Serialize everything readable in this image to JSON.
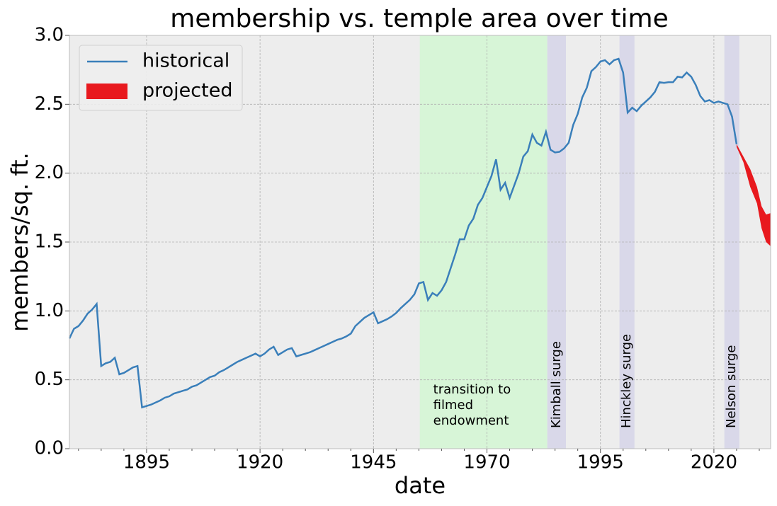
{
  "chart_data": {
    "type": "line",
    "title": "membership vs. temple area over time",
    "xlabel": "date",
    "ylabel": "members/sq. ft.",
    "xlim": [
      1878,
      2032.5
    ],
    "ylim": [
      0,
      3
    ],
    "xticks": [
      1895,
      1920,
      1945,
      1970,
      1995,
      2020
    ],
    "xticks_minor": [
      1880,
      1885,
      1890,
      1900,
      1905,
      1910,
      1915,
      1925,
      1930,
      1935,
      1940,
      1950,
      1955,
      1960,
      1965,
      1975,
      1980,
      1985,
      1990,
      2000,
      2005,
      2010,
      2015,
      2025,
      2030
    ],
    "yticks": [
      {
        "value": 0,
        "label": "0.0"
      },
      0.5,
      {
        "value": 1,
        "label": "1.0"
      },
      1.5,
      {
        "value": 2,
        "label": "2.0"
      },
      2.5,
      {
        "value": 3,
        "label": "3.0"
      }
    ],
    "grid": true,
    "legend": "upper left",
    "spans": [
      {
        "start": 1955.2,
        "end": 1983.3,
        "color": "#d7f5d7",
        "label": [
          "transition to",
          "filmed",
          "endowment"
        ]
      },
      {
        "start": 1983.3,
        "end": 1987.4,
        "color": "#d9d8e9",
        "label": "Kimball surge"
      },
      {
        "start": 1999.2,
        "end": 2002.5,
        "color": "#d9d8e9",
        "label": "Hinckley surge"
      },
      {
        "start": 2022.3,
        "end": 2025.6,
        "color": "#d9d8e9",
        "label": "Nelson surge"
      }
    ],
    "series": [
      {
        "name": "historical",
        "color": "#3a7fba",
        "x": [
          1878,
          1879,
          1880,
          1881,
          1882,
          1883,
          1884,
          1885,
          1886,
          1887,
          1888,
          1889,
          1890,
          1891,
          1892,
          1893,
          1894,
          1895,
          1896,
          1897,
          1898,
          1899,
          1900,
          1901,
          1902,
          1903,
          1904,
          1905,
          1906,
          1907,
          1908,
          1909,
          1910,
          1911,
          1912,
          1913,
          1914,
          1915,
          1916,
          1917,
          1918,
          1919,
          1920,
          1921,
          1922,
          1923,
          1924,
          1925,
          1926,
          1927,
          1928,
          1929,
          1930,
          1931,
          1932,
          1933,
          1934,
          1935,
          1936,
          1937,
          1938,
          1939,
          1940,
          1941,
          1942,
          1943,
          1944,
          1945,
          1946,
          1947,
          1948,
          1949,
          1950,
          1951,
          1952,
          1953,
          1954,
          1955,
          1956,
          1957,
          1958,
          1959,
          1960,
          1961,
          1962,
          1963,
          1964,
          1965,
          1966,
          1967,
          1968,
          1969,
          1970,
          1971,
          1972,
          1973,
          1974,
          1975,
          1976,
          1977,
          1978,
          1979,
          1980,
          1981,
          1982,
          1983,
          1984,
          1985,
          1986,
          1987,
          1988,
          1989,
          1990,
          1991,
          1992,
          1993,
          1994,
          1995,
          1996,
          1997,
          1998,
          1999,
          2000,
          2001,
          2002,
          2003,
          2004,
          2005,
          2006,
          2007,
          2008,
          2009,
          2010,
          2011,
          2012,
          2013,
          2014,
          2015,
          2016,
          2017,
          2018,
          2019,
          2020,
          2021,
          2022,
          2023,
          2024,
          2025
        ],
        "values": [
          0.8,
          0.87,
          0.89,
          0.93,
          0.98,
          1.01,
          1.05,
          0.6,
          0.62,
          0.63,
          0.66,
          0.54,
          0.55,
          0.57,
          0.59,
          0.6,
          0.3,
          0.31,
          0.32,
          0.335,
          0.35,
          0.37,
          0.38,
          0.4,
          0.41,
          0.42,
          0.43,
          0.45,
          0.46,
          0.48,
          0.5,
          0.52,
          0.53,
          0.555,
          0.57,
          0.59,
          0.61,
          0.63,
          0.645,
          0.66,
          0.675,
          0.69,
          0.67,
          0.69,
          0.72,
          0.74,
          0.68,
          0.7,
          0.72,
          0.73,
          0.67,
          0.68,
          0.69,
          0.7,
          0.715,
          0.73,
          0.745,
          0.76,
          0.775,
          0.79,
          0.8,
          0.815,
          0.835,
          0.89,
          0.92,
          0.95,
          0.97,
          0.99,
          0.91,
          0.925,
          0.94,
          0.96,
          0.985,
          1.02,
          1.05,
          1.08,
          1.12,
          1.2,
          1.21,
          1.08,
          1.13,
          1.11,
          1.15,
          1.21,
          1.31,
          1.41,
          1.52,
          1.52,
          1.62,
          1.67,
          1.77,
          1.82,
          1.9,
          1.98,
          2.1,
          1.88,
          1.93,
          1.82,
          1.91,
          2.0,
          2.12,
          2.16,
          2.28,
          2.22,
          2.2,
          2.3,
          2.17,
          2.15,
          2.155,
          2.18,
          2.22,
          2.35,
          2.43,
          2.55,
          2.62,
          2.74,
          2.77,
          2.81,
          2.82,
          2.79,
          2.82,
          2.83,
          2.73,
          2.44,
          2.475,
          2.45,
          2.49,
          2.52,
          2.55,
          2.59,
          2.66,
          2.655,
          2.66,
          2.66,
          2.7,
          2.695,
          2.73,
          2.7,
          2.64,
          2.56,
          2.52,
          2.53,
          2.51,
          2.52,
          2.51,
          2.5,
          2.41,
          2.21
        ]
      },
      {
        "name": "projected",
        "color": "#e8191e",
        "x": [
          2025,
          2026.5,
          2028,
          2029.5,
          2030.5,
          2031.5,
          2032.5
        ],
        "lower": [
          2.19,
          2.08,
          1.9,
          1.78,
          1.6,
          1.5,
          1.47
        ],
        "upper": [
          2.21,
          2.12,
          2.03,
          1.9,
          1.76,
          1.7,
          1.71
        ]
      }
    ]
  }
}
